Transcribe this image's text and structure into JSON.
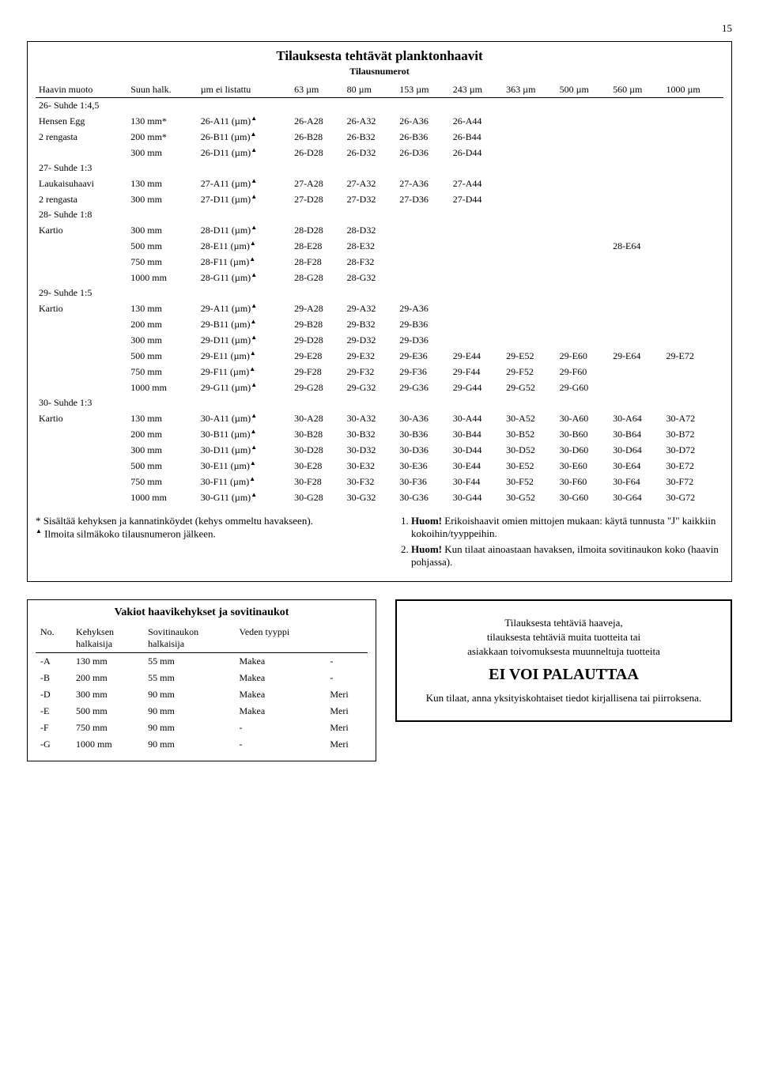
{
  "page_number": "15",
  "main": {
    "title": "Tilauksesta tehtävät planktonhaavit",
    "subtitle": "Tilausnumerot",
    "header": [
      "Haavin muoto",
      "Suun halk.",
      "µm ei listattu",
      "63 µm",
      "80 µm",
      "153 µm",
      "243 µm",
      "363 µm",
      "500 µm",
      "560 µm",
      "1000 µm"
    ],
    "sections": [
      {
        "heading": "26- Suhde 1:4,5",
        "rows": [
          {
            "label": "Hensen Egg",
            "size": "130 mm*",
            "code": "26-A11 (µm)",
            "tri": true,
            "cells": [
              "26-A28",
              "26-A32",
              "26-A36",
              "26-A44",
              "",
              "",
              "",
              ""
            ]
          },
          {
            "label": "2 rengasta",
            "size": "200 mm*",
            "code": "26-B11 (µm)",
            "tri": true,
            "cells": [
              "26-B28",
              "26-B32",
              "26-B36",
              "26-B44",
              "",
              "",
              "",
              ""
            ]
          },
          {
            "label": "",
            "size": "300 mm",
            "code": "26-D11 (µm)",
            "tri": true,
            "cells": [
              "26-D28",
              "26-D32",
              "26-D36",
              "26-D44",
              "",
              "",
              "",
              ""
            ]
          }
        ]
      },
      {
        "heading": "27- Suhde 1:3",
        "rows": [
          {
            "label": "Laukaisuhaavi",
            "size": "130 mm",
            "code": "27-A11 (µm)",
            "tri": true,
            "cells": [
              "27-A28",
              "27-A32",
              "27-A36",
              "27-A44",
              "",
              "",
              "",
              ""
            ]
          },
          {
            "label": "2 rengasta",
            "size": "300 mm",
            "code": "27-D11 (µm)",
            "tri": true,
            "cells": [
              "27-D28",
              "27-D32",
              "27-D36",
              "27-D44",
              "",
              "",
              "",
              ""
            ]
          }
        ]
      },
      {
        "heading": "28- Suhde 1:8",
        "rows": [
          {
            "label": "Kartio",
            "size": "300 mm",
            "code": "28-D11 (µm)",
            "tri": true,
            "cells": [
              "28-D28",
              "28-D32",
              "",
              "",
              "",
              "",
              "",
              ""
            ]
          },
          {
            "label": "",
            "size": "500 mm",
            "code": "28-E11 (µm)",
            "tri": true,
            "cells": [
              "28-E28",
              "28-E32",
              "",
              "",
              "",
              "",
              "28-E64",
              ""
            ]
          },
          {
            "label": "",
            "size": "750 mm",
            "code": "28-F11 (µm)",
            "tri": true,
            "cells": [
              "28-F28",
              "28-F32",
              "",
              "",
              "",
              "",
              "",
              ""
            ]
          },
          {
            "label": "",
            "size": "1000 mm",
            "code": "28-G11 (µm)",
            "tri": true,
            "cells": [
              "28-G28",
              "28-G32",
              "",
              "",
              "",
              "",
              "",
              ""
            ]
          }
        ]
      },
      {
        "heading": "29- Suhde 1:5",
        "rows": [
          {
            "label": "Kartio",
            "size": "130 mm",
            "code": "29-A11 (µm)",
            "tri": true,
            "cells": [
              "29-A28",
              "29-A32",
              "29-A36",
              "",
              "",
              "",
              "",
              ""
            ]
          },
          {
            "label": "",
            "size": "200 mm",
            "code": "29-B11 (µm)",
            "tri": true,
            "cells": [
              "29-B28",
              "29-B32",
              "29-B36",
              "",
              "",
              "",
              "",
              ""
            ]
          },
          {
            "label": "",
            "size": "300 mm",
            "code": "29-D11 (µm)",
            "tri": true,
            "cells": [
              "29-D28",
              "29-D32",
              "29-D36",
              "",
              "",
              "",
              "",
              ""
            ]
          },
          {
            "label": "",
            "size": "500 mm",
            "code": "29-E11 (µm)",
            "tri": true,
            "cells": [
              "29-E28",
              "29-E32",
              "29-E36",
              "29-E44",
              "29-E52",
              "29-E60",
              "29-E64",
              "29-E72"
            ]
          },
          {
            "label": "",
            "size": "750 mm",
            "code": "29-F11 (µm)",
            "tri": true,
            "cells": [
              "29-F28",
              "29-F32",
              "29-F36",
              "29-F44",
              "29-F52",
              "29-F60",
              "",
              ""
            ]
          },
          {
            "label": "",
            "size": "1000 mm",
            "code": "29-G11 (µm)",
            "tri": true,
            "cells": [
              "29-G28",
              "29-G32",
              "29-G36",
              "29-G44",
              "29-G52",
              "29-G60",
              "",
              ""
            ]
          }
        ]
      },
      {
        "heading": "30- Suhde 1:3",
        "rows": [
          {
            "label": "Kartio",
            "size": "130 mm",
            "code": "30-A11 (µm)",
            "tri": true,
            "cells": [
              "30-A28",
              "30-A32",
              "30-A36",
              "30-A44",
              "30-A52",
              "30-A60",
              "30-A64",
              "30-A72"
            ]
          },
          {
            "label": "",
            "size": "200 mm",
            "code": "30-B11 (µm)",
            "tri": true,
            "cells": [
              "30-B28",
              "30-B32",
              "30-B36",
              "30-B44",
              "30-B52",
              "30-B60",
              "30-B64",
              "30-B72"
            ]
          },
          {
            "label": "",
            "size": "300 mm",
            "code": "30-D11 (µm)",
            "tri": true,
            "cells": [
              "30-D28",
              "30-D32",
              "30-D36",
              "30-D44",
              "30-D52",
              "30-D60",
              "30-D64",
              "30-D72"
            ]
          },
          {
            "label": "",
            "size": "500 mm",
            "code": "30-E11 (µm)",
            "tri": true,
            "cells": [
              "30-E28",
              "30-E32",
              "30-E36",
              "30-E44",
              "30-E52",
              "30-E60",
              "30-E64",
              "30-E72"
            ]
          },
          {
            "label": "",
            "size": "750 mm",
            "code": "30-F11 (µm)",
            "tri": true,
            "cells": [
              "30-F28",
              "30-F32",
              "30-F36",
              "30-F44",
              "30-F52",
              "30-F60",
              "30-F64",
              "30-F72"
            ]
          },
          {
            "label": "",
            "size": "1000 mm",
            "code": "30-G11 (µm)",
            "tri": true,
            "cells": [
              "30-G28",
              "30-G32",
              "30-G36",
              "30-G44",
              "30-G52",
              "30-G60",
              "30-G64",
              "30-G72"
            ]
          }
        ]
      }
    ]
  },
  "footnotes": {
    "left_line1": "* Sisältää kehyksen ja kannatinköydet (kehys ommeltu havakseen).",
    "left_line2_marker": "▲",
    "left_line2": " Ilmoita silmäkoko tilausnumeron jälkeen.",
    "right_1_bold": "Huom!",
    "right_1_text": " Erikoishaavit omien mittojen mukaan: käytä tunnusta \"J\" kaikkiin kokoihin/tyyppeihin.",
    "right_2_bold": "Huom!",
    "right_2_text": " Kun tilaat ainoastaan havaksen, ilmoita sovitinaukon koko (haavin pohjassa)."
  },
  "vakiot": {
    "title": "Vakiot haavikehykset ja sovitinaukot",
    "header": [
      "No.",
      "Kehyksen halkaisija",
      "Sovitinaukon halkaisija",
      "Veden tyyppi",
      ""
    ],
    "rows": [
      [
        "-A",
        "130 mm",
        "55 mm",
        "Makea",
        "-"
      ],
      [
        "-B",
        "200 mm",
        "55 mm",
        "Makea",
        "-"
      ],
      [
        "-D",
        "300 mm",
        "90 mm",
        "Makea",
        "Meri"
      ],
      [
        "-E",
        "500 mm",
        "90 mm",
        "Makea",
        "Meri"
      ],
      [
        "-F",
        "750 mm",
        "90 mm",
        "-",
        "Meri"
      ],
      [
        "-G",
        "1000 mm",
        "90 mm",
        "-",
        "Meri"
      ]
    ]
  },
  "return_box": {
    "line1": "Tilauksesta tehtäviä haaveja,",
    "line2": "tilauksesta tehtäviä muita tuotteita tai",
    "line3": "asiakkaan toivomuksesta muunneltuja tuotteita",
    "big": "EI VOI PALAUTTAA",
    "line4": "Kun tilaat, anna yksityiskohtaiset tiedot kirjallisena tai piirroksena."
  }
}
